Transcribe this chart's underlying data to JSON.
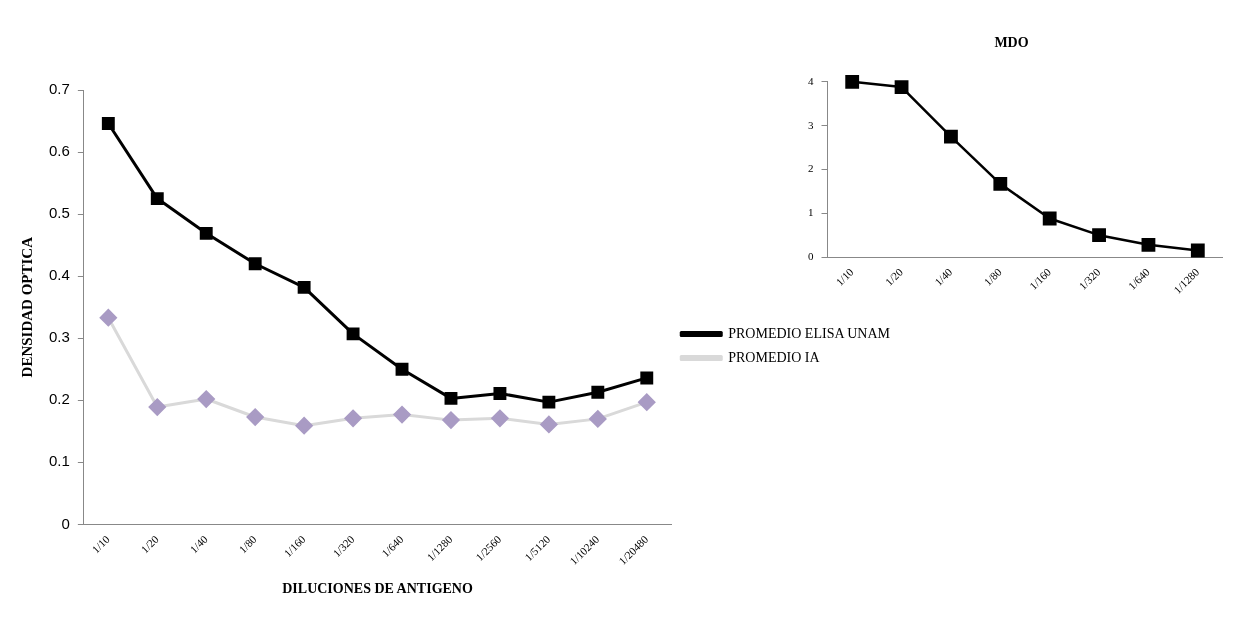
{
  "chart_data": [
    {
      "type": "line",
      "xlabel": "DILUCIONES DE ANTIGENO",
      "ylabel": "DENSIDAD OPTICA",
      "categories": [
        "1/10",
        "1/20",
        "1/40",
        "1/80",
        "1/160",
        "1/320",
        "1/640",
        "1/1280",
        "1/2560",
        "1/5120",
        "1/10240",
        "1/20480"
      ],
      "series": [
        {
          "name": "PROMEDIO ELISA UNAM",
          "color": "#000000",
          "marker": "square",
          "values": [
            0.646,
            0.525,
            0.469,
            0.42,
            0.382,
            0.307,
            0.25,
            0.203,
            0.211,
            0.197,
            0.213,
            0.236
          ]
        },
        {
          "name": "PROMEDIO IA",
          "color": "#d9d9d9",
          "marker": "diamond",
          "colors": [
            "#a99bc4",
            "#a99bc4",
            "#a99bc4",
            "#a99bc4",
            "#a99bc4",
            "#a99bc4",
            "#a99bc4",
            "#a99bc4",
            "#a99bc4",
            "#a99bc4",
            "#a99bc4",
            "#a99bc4"
          ],
          "values": [
            0.333,
            0.189,
            0.202,
            0.173,
            0.159,
            0.171,
            0.177,
            0.168,
            0.171,
            0.161,
            0.17,
            0.197
          ]
        }
      ],
      "ylim": [
        0,
        0.7
      ],
      "yticks": [
        0,
        0.1,
        0.2,
        0.3,
        0.4,
        0.5,
        0.6,
        0.7
      ],
      "grid": false,
      "legend": "right"
    },
    {
      "type": "line",
      "title": "MDO",
      "categories": [
        "1/10",
        "1/20",
        "1/40",
        "1/80",
        "1/160",
        "1/320",
        "1/640",
        "1/1280"
      ],
      "series": [
        {
          "color": "#000000",
          "marker": "square",
          "values": [
            4.0,
            3.88,
            2.75,
            1.67,
            0.88,
            0.5,
            0.28,
            0.15
          ]
        }
      ],
      "ylim": [
        0,
        4
      ],
      "yticks": [
        0,
        1,
        2,
        3,
        4
      ],
      "grid": false,
      "legend": false
    }
  ]
}
